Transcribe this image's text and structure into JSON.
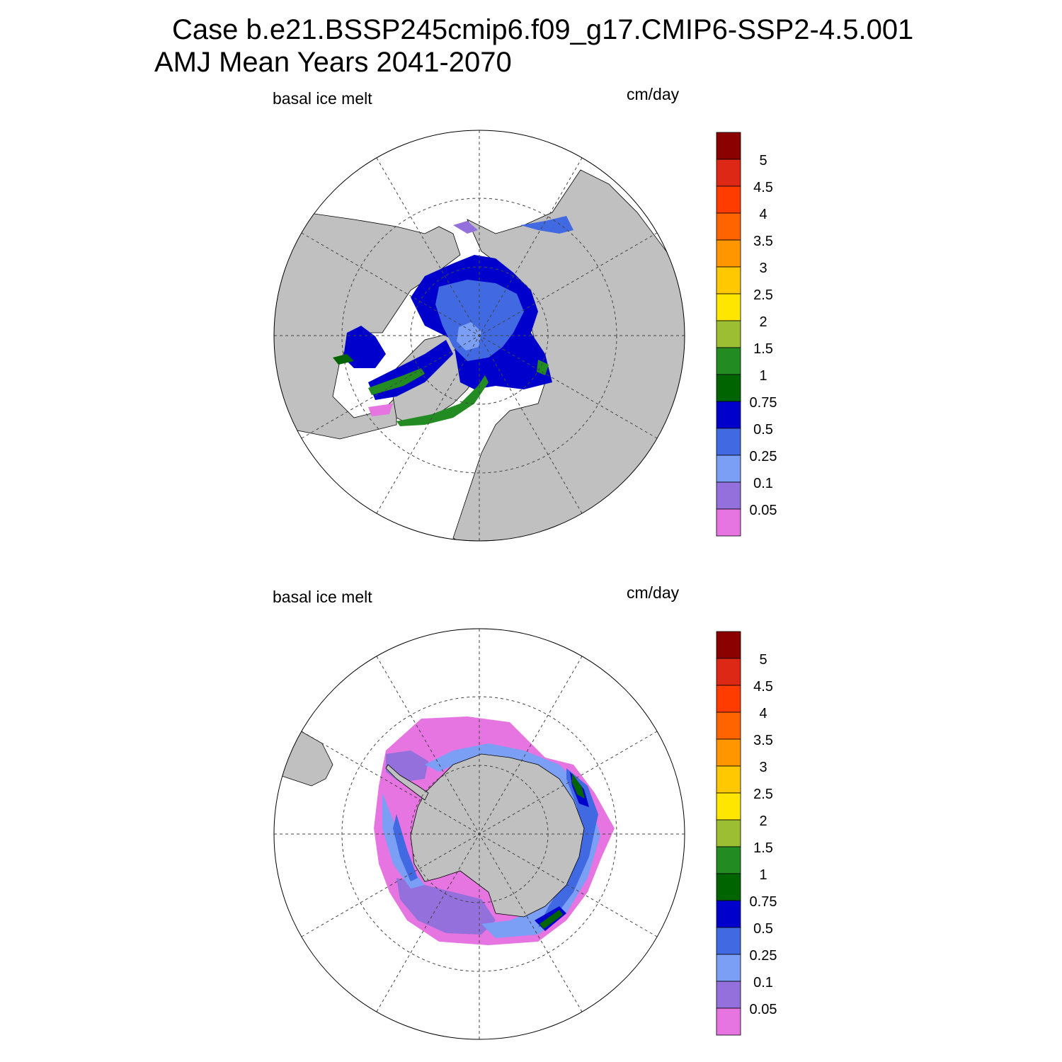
{
  "title": {
    "line1": "Case b.e21.BSSP245cmip6.f09_g17.CMIP6-SSP2-4.5.001",
    "line2": "AMJ Mean   Years 2041-2070"
  },
  "panels": [
    {
      "id": "north",
      "left_label": "basal ice melt",
      "right_label": "cm/day",
      "hemisphere": "Northern Hemisphere polar stereographic",
      "content": "ice melt mostly 0.25-0.75 cm/day across Arctic, 0.75-1.5 cm/day along Baffin Bay, Hudson Bay and East Greenland margins"
    },
    {
      "id": "south",
      "left_label": "basal ice melt",
      "right_label": "cm/day",
      "hemisphere": "Southern Hemisphere polar stereographic",
      "content": "ice melt mostly below 0.1 cm/day in outer ring, 0.25-0.75 near coast, up to 1 cm/day off East Antarctica"
    }
  ],
  "colorbar": {
    "labels": [
      "5",
      "4.5",
      "4",
      "3.5",
      "3",
      "2.5",
      "2",
      "1.5",
      "1",
      "0.75",
      "0.5",
      "0.25",
      "0.1",
      "0.05"
    ],
    "colors_top_to_bottom": [
      "#8b0000",
      "#dc2814",
      "#ff3c00",
      "#ff6400",
      "#ff9600",
      "#ffc800",
      "#ffe600",
      "#9bbe32",
      "#228b22",
      "#006400",
      "#0000cd",
      "#4169e1",
      "#7b9ff5",
      "#9370db",
      "#e674e1"
    ]
  },
  "colors": {
    "land": "#c0c0c0",
    "ocean_no_ice": "#ffffff",
    "grid_line": "#444444"
  }
}
